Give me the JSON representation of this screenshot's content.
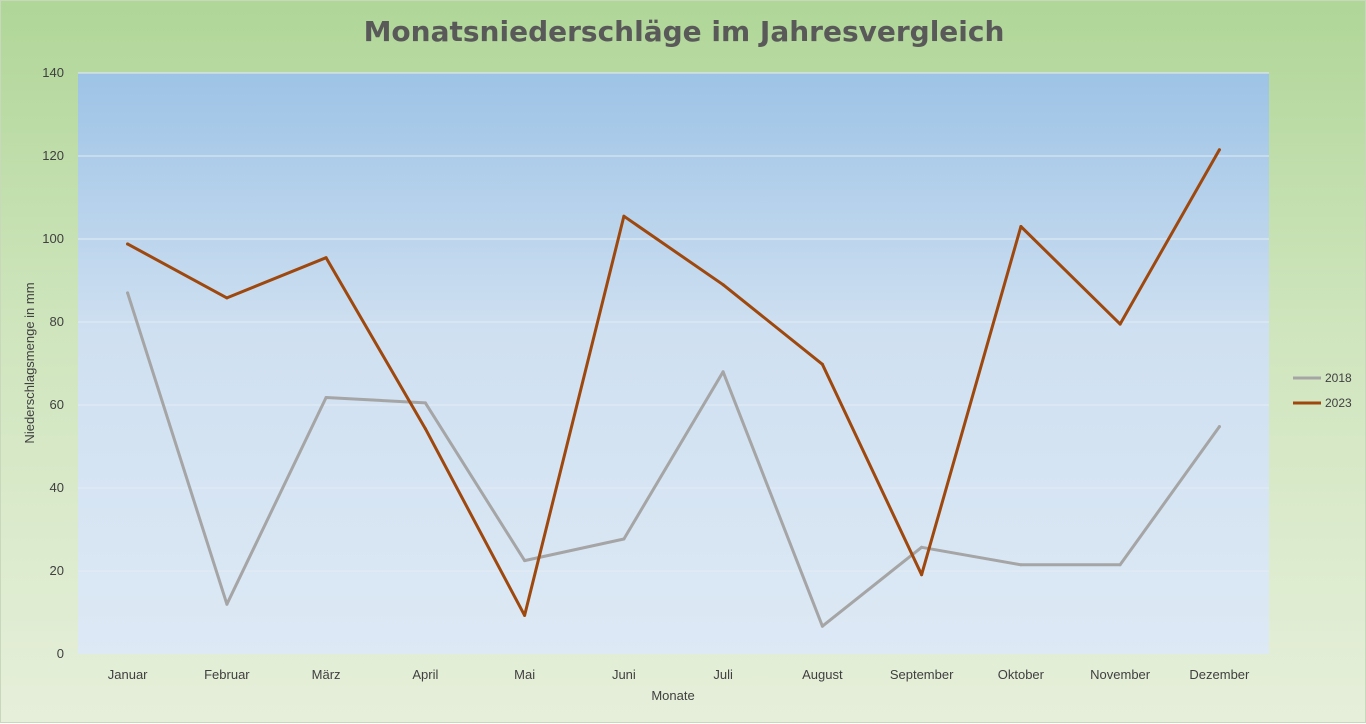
{
  "chart_data": {
    "type": "line",
    "title": "Monatsniederschläge im Jahresvergleich",
    "xlabel": "Monate",
    "ylabel": "Niederschlagsmenge in mm",
    "ylim": [
      0,
      140
    ],
    "yticks": [
      0,
      20,
      40,
      60,
      80,
      100,
      120,
      140
    ],
    "grid": true,
    "legend_position": "right",
    "categories": [
      "Januar",
      "Februar",
      "März",
      "April",
      "Mai",
      "Juni",
      "Juli",
      "August",
      "September",
      "Oktober",
      "November",
      "Dezember"
    ],
    "series": [
      {
        "name": "2018",
        "color": "#a5a5a5",
        "values": [
          87,
          12,
          61.8,
          60.5,
          22.5,
          27.7,
          68,
          6.7,
          25.7,
          21.5,
          21.5,
          54.8
        ]
      },
      {
        "name": "2023",
        "color": "#9e480e",
        "values": [
          98.8,
          85.8,
          95.5,
          54.3,
          9.3,
          105.5,
          89,
          69.8,
          19.1,
          103,
          79.5,
          121.5
        ]
      }
    ]
  }
}
